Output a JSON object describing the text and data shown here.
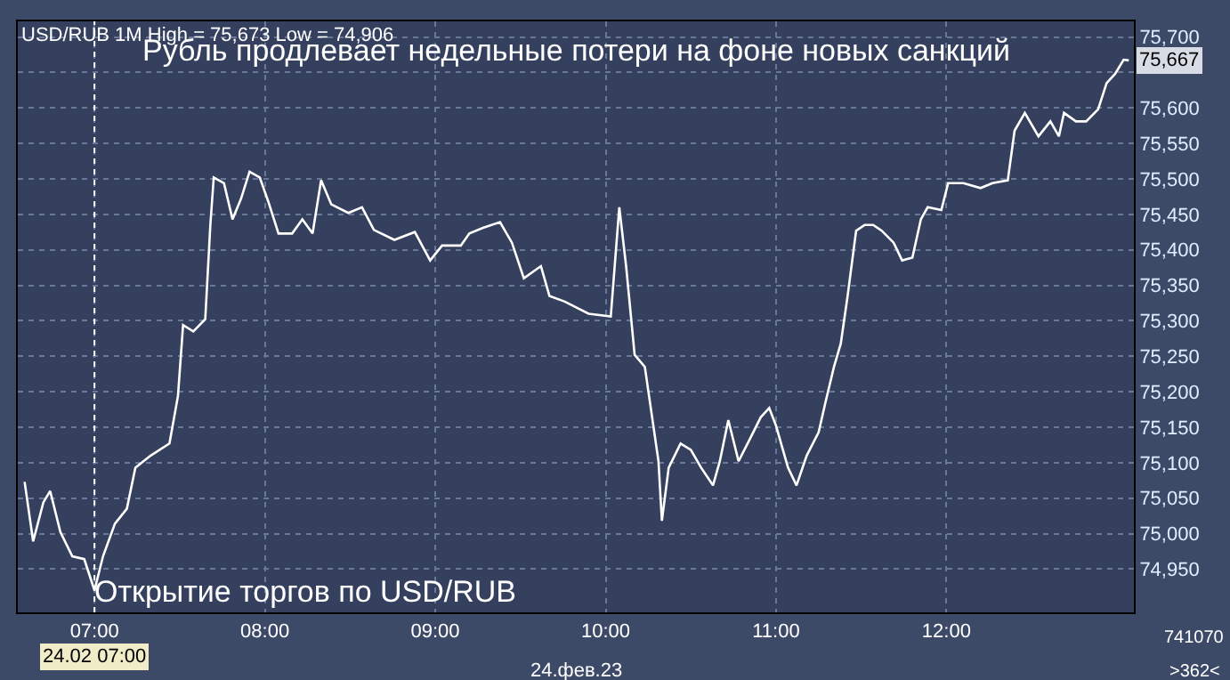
{
  "chart_data": {
    "type": "line",
    "title": "Рубль продлевает недельные потери на фоне новых санкций",
    "x": [
      6.59,
      6.64,
      6.7,
      6.74,
      6.8,
      6.87,
      6.94,
      7.0,
      7.05,
      7.12,
      7.19,
      7.24,
      7.33,
      7.44,
      7.49,
      7.52,
      7.58,
      7.65,
      7.68,
      7.7,
      7.76,
      7.81,
      7.86,
      7.91,
      7.97,
      8.02,
      8.08,
      8.16,
      8.22,
      8.28,
      8.33,
      8.39,
      8.49,
      8.57,
      8.64,
      8.76,
      8.88,
      8.97,
      9.04,
      9.15,
      9.2,
      9.28,
      9.38,
      9.45,
      9.52,
      9.62,
      9.67,
      9.76,
      9.9,
      10.03,
      10.08,
      10.12,
      10.17,
      10.23,
      10.31,
      10.33,
      10.37,
      10.44,
      10.5,
      10.56,
      10.63,
      10.67,
      10.72,
      10.78,
      10.85,
      10.91,
      10.96,
      11.0,
      11.07,
      11.12,
      11.18,
      11.25,
      11.29,
      11.34,
      11.38,
      11.42,
      11.47,
      11.52,
      11.57,
      11.62,
      11.69,
      11.74,
      11.8,
      11.85,
      11.89,
      11.97,
      12.01,
      12.1,
      12.2,
      12.27,
      12.36,
      12.4,
      12.46,
      12.54,
      12.61,
      12.66,
      12.69,
      12.76,
      12.82,
      12.89,
      12.94,
      12.99,
      13.04,
      13.07
    ],
    "series": [
      {
        "color": "#ffffff",
        "values": [
          75073,
          74989,
          75044,
          75060,
          75002,
          74968,
          74964,
          74920,
          74968,
          75014,
          75035,
          75093,
          75110,
          75127,
          75194,
          75294,
          75285,
          75302,
          75435,
          75502,
          75494,
          75443,
          75472,
          75510,
          75502,
          75468,
          75423,
          75423,
          75443,
          75423,
          75498,
          75464,
          75452,
          75460,
          75428,
          75414,
          75425,
          75385,
          75406,
          75406,
          75423,
          75431,
          75439,
          75410,
          75360,
          75377,
          75335,
          75327,
          75310,
          75306,
          75460,
          75377,
          75252,
          75235,
          75102,
          75018,
          75093,
          75127,
          75118,
          75093,
          75068,
          75102,
          75160,
          75102,
          75135,
          75164,
          75177,
          75152,
          75093,
          75068,
          75110,
          75143,
          75185,
          75235,
          75268,
          75335,
          75427,
          75435,
          75435,
          75427,
          75410,
          75385,
          75389,
          75443,
          75460,
          75456,
          75494,
          75494,
          75487,
          75494,
          75498,
          75568,
          75593,
          75560,
          75581,
          75560,
          75593,
          75581,
          75581,
          75598,
          75635,
          75648,
          75668,
          75667
        ]
      }
    ],
    "xlim": [
      6.55,
      13.1
    ],
    "xticks": [
      {
        "value": 7,
        "label": "07:00"
      },
      {
        "value": 8,
        "label": "08:00"
      },
      {
        "value": 9,
        "label": "09:00"
      },
      {
        "value": 10,
        "label": "10:00"
      },
      {
        "value": 11,
        "label": "11:00"
      },
      {
        "value": 12,
        "label": "12:00"
      }
    ],
    "ylim": [
      74889,
      75722
    ],
    "yticks": [
      {
        "value": 74950,
        "label": "74,950"
      },
      {
        "value": 75000,
        "label": "75,000"
      },
      {
        "value": 75050,
        "label": "75,050"
      },
      {
        "value": 75100,
        "label": "75,100"
      },
      {
        "value": 75150,
        "label": "75,150"
      },
      {
        "value": 75200,
        "label": "75,200"
      },
      {
        "value": 75250,
        "label": "75,250"
      },
      {
        "value": 75300,
        "label": "75,300"
      },
      {
        "value": 75350,
        "label": "75,350"
      },
      {
        "value": 75400,
        "label": "75,400"
      },
      {
        "value": 75450,
        "label": "75,450"
      },
      {
        "value": 75500,
        "label": "75,500"
      },
      {
        "value": 75550,
        "label": "75,550"
      },
      {
        "value": 75600,
        "label": "75,600"
      },
      {
        "value": 75650,
        "label": null
      },
      {
        "value": 75700,
        "label": "75,700"
      }
    ],
    "grid": true,
    "marker": "none",
    "line_style": "solid",
    "ref_lines": [
      {
        "axis": "x",
        "value": 7,
        "label": "24.02 07:00",
        "color": "#ffffff",
        "line_style": "dotted"
      }
    ],
    "annotations": [
      "USD/RUB 1M High = 75,673 Low = 74,906",
      "Открытие торгов по USD/RUB",
      "24.фев.23",
      "741070",
      ">362<",
      {
        "text": "75,667",
        "x": 13.07,
        "y": 75667
      }
    ]
  }
}
